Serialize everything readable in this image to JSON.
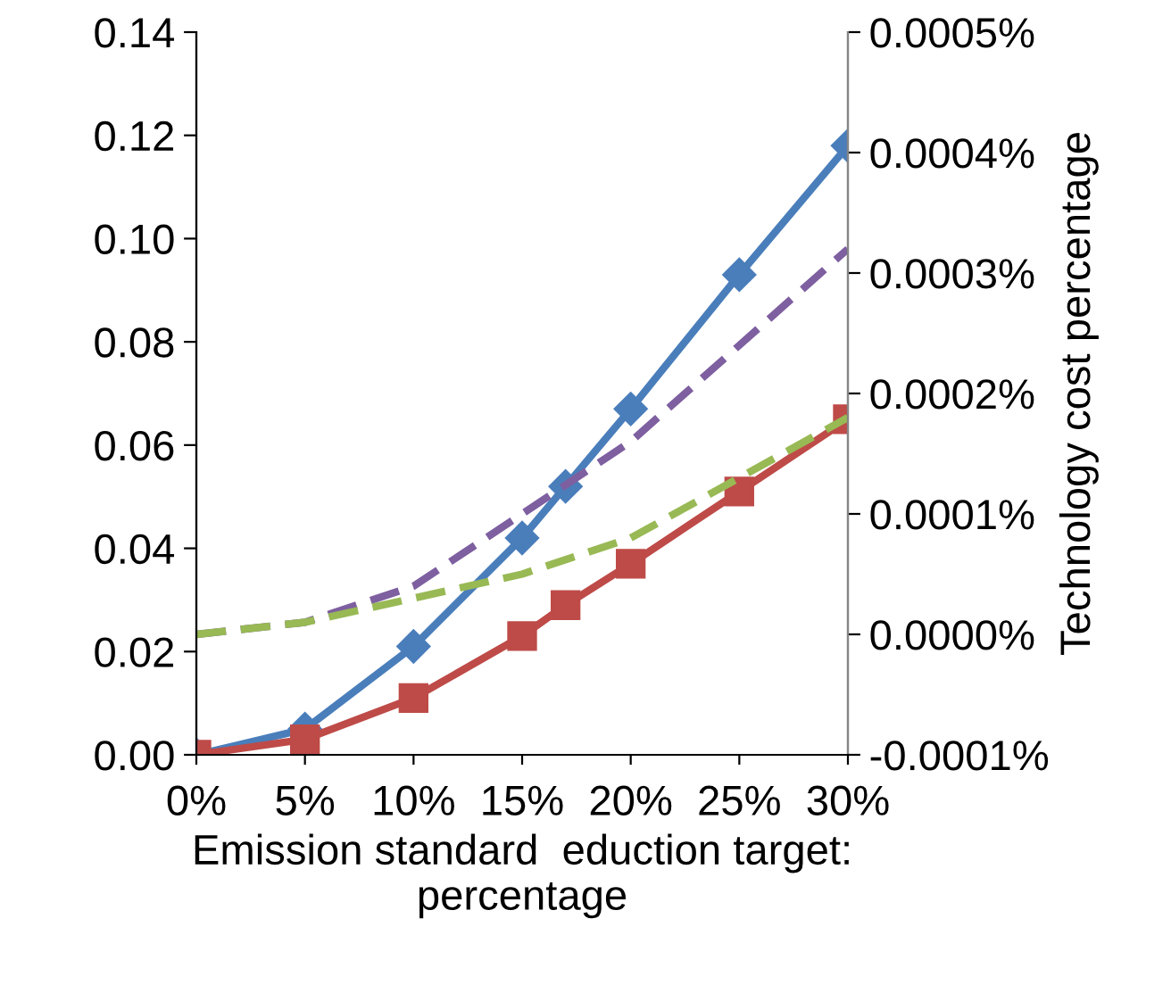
{
  "chart_data": {
    "type": "line",
    "xlabel": "Emission standard  eduction target:\npercentage",
    "y2label": "Technology cost percentage",
    "x": [
      0,
      5,
      10,
      15,
      17,
      20,
      25,
      30
    ],
    "xlim": [
      0,
      30
    ],
    "xticks": [
      {
        "value": 0,
        "label": "0%"
      },
      {
        "value": 5,
        "label": "5%"
      },
      {
        "value": 10,
        "label": "10%"
      },
      {
        "value": 15,
        "label": "15%"
      },
      {
        "value": 20,
        "label": "20%"
      },
      {
        "value": 25,
        "label": "25%"
      },
      {
        "value": 30,
        "label": "30%"
      }
    ],
    "ylim": [
      0,
      0.14
    ],
    "yticks": [
      {
        "value": 0,
        "label": "0.00"
      },
      {
        "value": 0.02,
        "label": "0.02"
      },
      {
        "value": 0.04,
        "label": "0.04"
      },
      {
        "value": 0.06,
        "label": "0.06"
      },
      {
        "value": 0.08,
        "label": "0.08"
      },
      {
        "value": 0.1,
        "label": "0.10"
      },
      {
        "value": 0.12,
        "label": "0.12"
      },
      {
        "value": 0.14,
        "label": "0.14"
      }
    ],
    "y2lim": [
      -0.0001,
      0.0005
    ],
    "y2ticks": [
      {
        "value": -0.0001,
        "label": "-0.0001%"
      },
      {
        "value": 0,
        "label": "0.0000%"
      },
      {
        "value": 0.0001,
        "label": "0.0001%"
      },
      {
        "value": 0.0002,
        "label": "0.0002%"
      },
      {
        "value": 0.0003,
        "label": "0.0003%"
      },
      {
        "value": 0.0004,
        "label": "0.0004%"
      },
      {
        "value": 0.0005,
        "label": "0.0005%"
      }
    ],
    "grid": false,
    "series": [
      {
        "color": "#4a7ebb",
        "marker": "diamond",
        "line_style": "solid",
        "values": [
          0.0,
          0.005,
          0.021,
          0.042,
          0.052,
          0.067,
          0.093,
          0.118
        ]
      },
      {
        "color": "#be4b48",
        "marker": "square",
        "line_style": "solid",
        "values": [
          0.0,
          0.003,
          0.011,
          0.023,
          0.029,
          0.037,
          0.051,
          0.065
        ]
      },
      {
        "color": "#7e5fa0",
        "marker": "none",
        "line_style": "dashed",
        "axis": "y2",
        "x": [
          0,
          5,
          10,
          15,
          20,
          25,
          30
        ],
        "values": [
          0.0,
          1e-05,
          4e-05,
          0.0001,
          0.00016,
          0.00024,
          0.00032
        ]
      },
      {
        "color": "#98b954",
        "marker": "none",
        "line_style": "dashed",
        "axis": "y2",
        "x": [
          0,
          5,
          10,
          15,
          20,
          25,
          30
        ],
        "values": [
          0.0,
          1e-05,
          3e-05,
          5e-05,
          8e-05,
          0.00013,
          0.00018
        ]
      }
    ]
  }
}
